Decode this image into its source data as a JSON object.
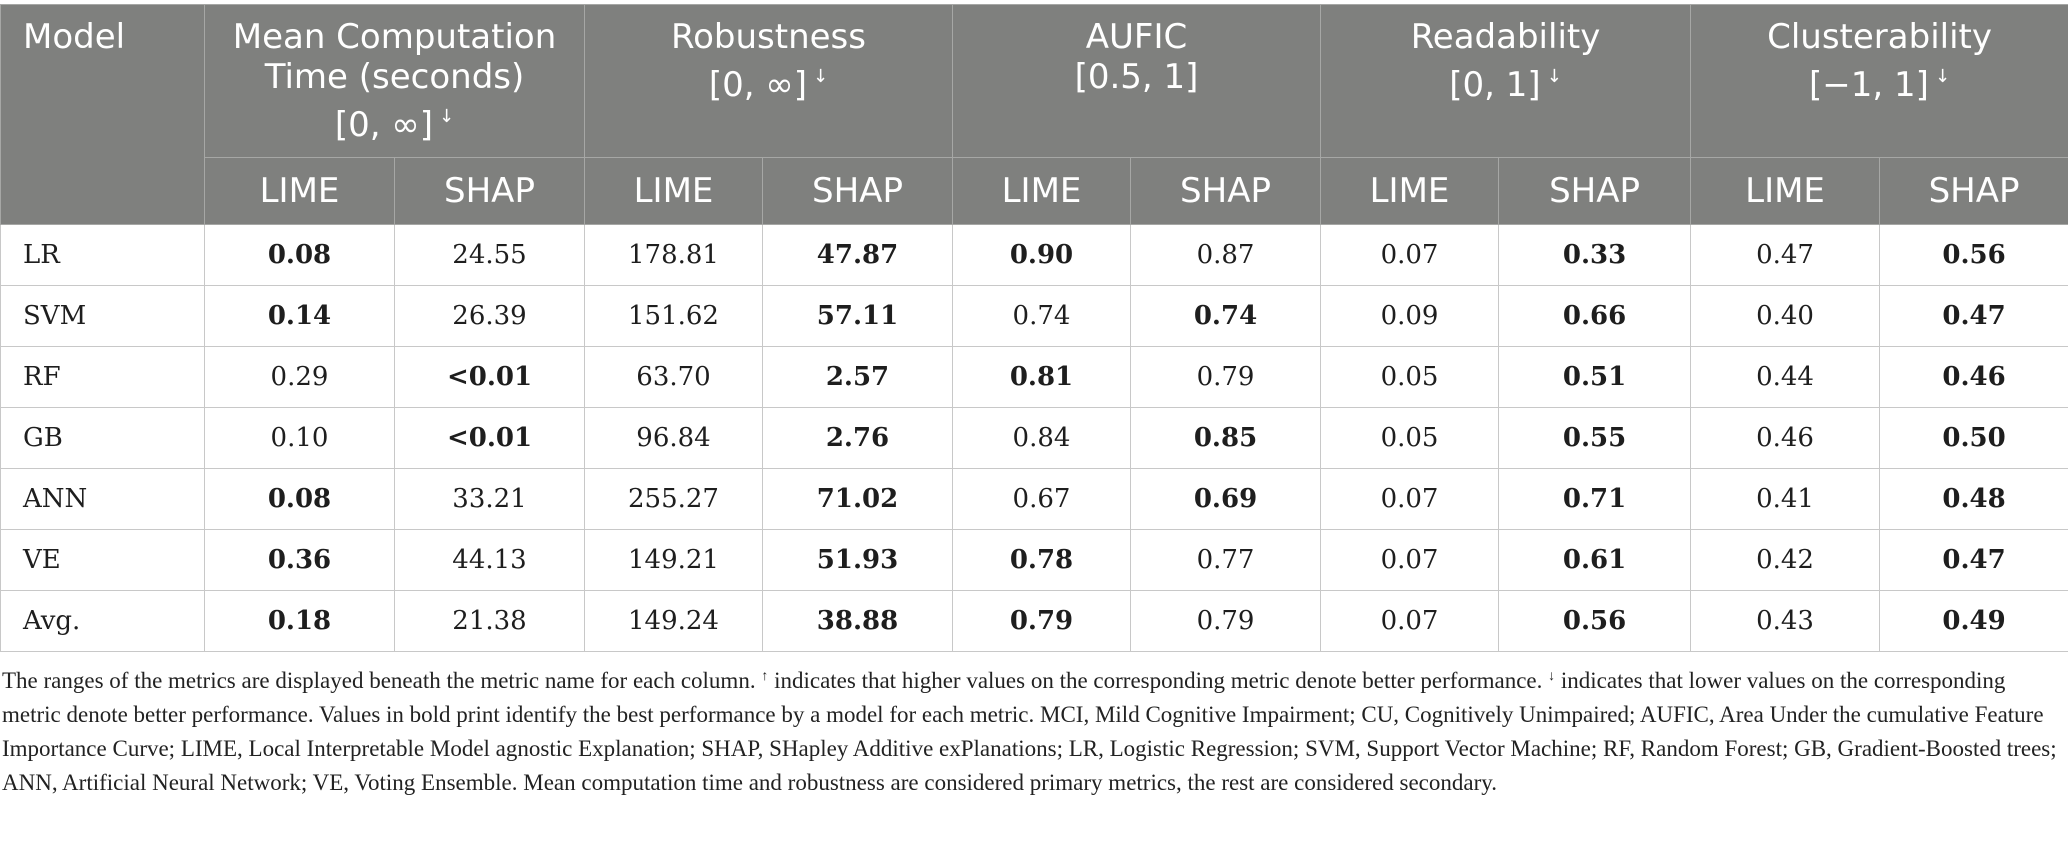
{
  "table": {
    "model_header": "Model",
    "metrics": [
      {
        "name_lines": [
          "Mean Computation",
          "Time (seconds)"
        ],
        "range": "[0, ∞]",
        "arrow": "↓"
      },
      {
        "name_lines": [
          "Robustness"
        ],
        "range": "[0, ∞]",
        "arrow": "↓"
      },
      {
        "name_lines": [
          "AUFIC"
        ],
        "range": "[0.5, 1]",
        "arrow": ""
      },
      {
        "name_lines": [
          "Readability"
        ],
        "range": "[0, 1]",
        "arrow": "↓"
      },
      {
        "name_lines": [
          "Clusterability"
        ],
        "range": "[−1, 1]",
        "arrow": "↓"
      }
    ],
    "sub_headers": [
      "LIME",
      "SHAP"
    ],
    "rows": [
      {
        "model": "LR",
        "cells": [
          {
            "v": "0.08",
            "b": true
          },
          {
            "v": "24.55",
            "b": false
          },
          {
            "v": "178.81",
            "b": false
          },
          {
            "v": "47.87",
            "b": true
          },
          {
            "v": "0.90",
            "b": true
          },
          {
            "v": "0.87",
            "b": false
          },
          {
            "v": "0.07",
            "b": false
          },
          {
            "v": "0.33",
            "b": true
          },
          {
            "v": "0.47",
            "b": false
          },
          {
            "v": "0.56",
            "b": true
          }
        ]
      },
      {
        "model": "SVM",
        "cells": [
          {
            "v": "0.14",
            "b": true
          },
          {
            "v": "26.39",
            "b": false
          },
          {
            "v": "151.62",
            "b": false
          },
          {
            "v": "57.11",
            "b": true
          },
          {
            "v": "0.74",
            "b": false
          },
          {
            "v": "0.74",
            "b": true
          },
          {
            "v": "0.09",
            "b": false
          },
          {
            "v": "0.66",
            "b": true
          },
          {
            "v": "0.40",
            "b": false
          },
          {
            "v": "0.47",
            "b": true
          }
        ]
      },
      {
        "model": "RF",
        "cells": [
          {
            "v": "0.29",
            "b": false
          },
          {
            "v": "<0.01",
            "b": true
          },
          {
            "v": "63.70",
            "b": false
          },
          {
            "v": "2.57",
            "b": true
          },
          {
            "v": "0.81",
            "b": true
          },
          {
            "v": "0.79",
            "b": false
          },
          {
            "v": "0.05",
            "b": false
          },
          {
            "v": "0.51",
            "b": true
          },
          {
            "v": "0.44",
            "b": false
          },
          {
            "v": "0.46",
            "b": true
          }
        ]
      },
      {
        "model": "GB",
        "cells": [
          {
            "v": "0.10",
            "b": false
          },
          {
            "v": "<0.01",
            "b": true
          },
          {
            "v": "96.84",
            "b": false
          },
          {
            "v": "2.76",
            "b": true
          },
          {
            "v": "0.84",
            "b": false
          },
          {
            "v": "0.85",
            "b": true
          },
          {
            "v": "0.05",
            "b": false
          },
          {
            "v": "0.55",
            "b": true
          },
          {
            "v": "0.46",
            "b": false
          },
          {
            "v": "0.50",
            "b": true
          }
        ]
      },
      {
        "model": "ANN",
        "cells": [
          {
            "v": "0.08",
            "b": true
          },
          {
            "v": "33.21",
            "b": false
          },
          {
            "v": "255.27",
            "b": false
          },
          {
            "v": "71.02",
            "b": true
          },
          {
            "v": "0.67",
            "b": false
          },
          {
            "v": "0.69",
            "b": true
          },
          {
            "v": "0.07",
            "b": false
          },
          {
            "v": "0.71",
            "b": true
          },
          {
            "v": "0.41",
            "b": false
          },
          {
            "v": "0.48",
            "b": true
          }
        ]
      },
      {
        "model": "VE",
        "cells": [
          {
            "v": "0.36",
            "b": true
          },
          {
            "v": "44.13",
            "b": false
          },
          {
            "v": "149.21",
            "b": false
          },
          {
            "v": "51.93",
            "b": true
          },
          {
            "v": "0.78",
            "b": true
          },
          {
            "v": "0.77",
            "b": false
          },
          {
            "v": "0.07",
            "b": false
          },
          {
            "v": "0.61",
            "b": true
          },
          {
            "v": "0.42",
            "b": false
          },
          {
            "v": "0.47",
            "b": true
          }
        ]
      },
      {
        "model": "Avg.",
        "cells": [
          {
            "v": "0.18",
            "b": true
          },
          {
            "v": "21.38",
            "b": false
          },
          {
            "v": "149.24",
            "b": false
          },
          {
            "v": "38.88",
            "b": true
          },
          {
            "v": "0.79",
            "b": true
          },
          {
            "v": "0.79",
            "b": false
          },
          {
            "v": "0.07",
            "b": false
          },
          {
            "v": "0.56",
            "b": true
          },
          {
            "v": "0.43",
            "b": false
          },
          {
            "v": "0.49",
            "b": true
          }
        ]
      }
    ]
  },
  "footnote": {
    "part1": "The ranges of the metrics are displayed beneath the metric name for each column.",
    "up_arrow": "↑",
    "part2": "indicates that higher values on the corresponding metric denote better performance.",
    "down_arrow": "↓",
    "part3": "indicates that lower values on the corresponding metric denote better performance. Values in bold print identify the best performance by a model for each metric. MCI, Mild Cognitive Impairment; CU, Cognitively Unimpaired; AUFIC, Area Under the cumulative Feature Importance Curve; LIME, Local Interpretable Model agnostic Explanation; SHAP, SHapley Additive exPlanations; LR, Logistic Regression; SVM, Support Vector Machine; RF, Random Forest; GB, Gradient-Boosted trees; ANN, Artificial Neural Network; VE, Voting Ensemble. Mean computation time and robustness are considered primary metrics, the rest are considered secondary."
  }
}
